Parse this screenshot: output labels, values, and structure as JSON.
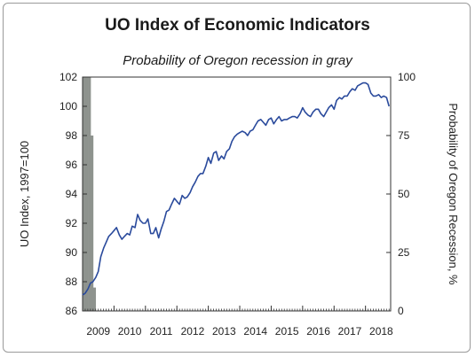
{
  "chart_data": {
    "type": "line",
    "title": "UO Index of Economic Indicators",
    "subtitle": "Probability of Oregon recession in gray",
    "ylabel": "UO Index, 1997=100",
    "y2label": "Probability of Oregon Recession, %",
    "ylim": [
      86,
      102
    ],
    "y2lim": [
      0,
      100
    ],
    "xlim": [
      2009.0,
      2018.8
    ],
    "yticks": [
      "86",
      "88",
      "90",
      "92",
      "94",
      "96",
      "98",
      "100",
      "102"
    ],
    "y2ticks": [
      "0",
      "25",
      "50",
      "75",
      "100"
    ],
    "xticks": [
      "2009",
      "2010",
      "2011",
      "2012",
      "2013",
      "2014",
      "2015",
      "2016",
      "2017",
      "2018"
    ],
    "grid": false,
    "colors": {
      "line": "#2a4a9c",
      "recession": "#8e938e"
    },
    "series": [
      {
        "x": [
          2009.0,
          2009.08,
          2009.17,
          2009.25,
          2009.33,
          2009.42,
          2009.5,
          2009.58,
          2009.67,
          2009.75,
          2009.83,
          2009.92,
          2010.0,
          2010.08,
          2010.17,
          2010.25,
          2010.33,
          2010.42,
          2010.5,
          2010.58,
          2010.67,
          2010.75,
          2010.83,
          2010.92,
          2011.0,
          2011.08,
          2011.17,
          2011.25,
          2011.33,
          2011.42,
          2011.5,
          2011.58,
          2011.67,
          2011.75,
          2011.83,
          2011.92,
          2012.0,
          2012.08,
          2012.17,
          2012.25,
          2012.33,
          2012.42,
          2012.5,
          2012.58,
          2012.67,
          2012.75,
          2012.83,
          2012.92,
          2013.0,
          2013.08,
          2013.17,
          2013.25,
          2013.33,
          2013.42,
          2013.5,
          2013.58,
          2013.67,
          2013.75,
          2013.83,
          2013.92,
          2014.0,
          2014.08,
          2014.17,
          2014.25,
          2014.33,
          2014.42,
          2014.5,
          2014.58,
          2014.67,
          2014.75,
          2014.83,
          2014.92,
          2015.0,
          2015.08,
          2015.17,
          2015.25,
          2015.33,
          2015.42,
          2015.5,
          2015.58,
          2015.67,
          2015.75,
          2015.83,
          2015.92,
          2016.0,
          2016.08,
          2016.17,
          2016.25,
          2016.33,
          2016.42,
          2016.5,
          2016.58,
          2016.67,
          2016.75,
          2016.83,
          2016.92,
          2017.0,
          2017.08,
          2017.17,
          2017.25,
          2017.33,
          2017.42,
          2017.5,
          2017.58,
          2017.67,
          2017.75,
          2017.83,
          2017.92,
          2018.0,
          2018.08,
          2018.17,
          2018.25,
          2018.33,
          2018.42,
          2018.5,
          2018.58,
          2018.67,
          2018.75
        ],
        "y": [
          87.1,
          87.2,
          87.5,
          87.9,
          88.0,
          88.3,
          88.7,
          89.7,
          90.3,
          90.7,
          91.1,
          91.3,
          91.5,
          91.7,
          91.2,
          90.9,
          91.1,
          91.3,
          91.2,
          91.8,
          91.7,
          92.6,
          92.2,
          92.0,
          92.0,
          92.3,
          91.3,
          91.3,
          91.7,
          91.0,
          91.6,
          92.1,
          92.8,
          92.9,
          93.3,
          93.7,
          93.5,
          93.3,
          93.9,
          93.7,
          93.8,
          94.1,
          94.5,
          94.8,
          95.2,
          95.4,
          95.4,
          95.9,
          96.5,
          96.1,
          96.8,
          96.9,
          96.3,
          96.6,
          96.4,
          96.9,
          97.1,
          97.6,
          97.9,
          98.1,
          98.2,
          98.3,
          98.2,
          98.0,
          98.3,
          98.4,
          98.7,
          99.0,
          99.1,
          98.9,
          98.7,
          99.1,
          99.2,
          98.8,
          99.1,
          99.3,
          99.0,
          99.1,
          99.1,
          99.2,
          99.3,
          99.3,
          99.2,
          99.5,
          99.9,
          99.6,
          99.4,
          99.3,
          99.6,
          99.8,
          99.8,
          99.5,
          99.3,
          99.6,
          99.9,
          100.1,
          99.8,
          100.4,
          100.6,
          100.5,
          100.7,
          100.7,
          101.0,
          101.2,
          101.1,
          101.4,
          101.5,
          101.6,
          101.6,
          101.5,
          100.9,
          100.7,
          100.7,
          100.8,
          100.6,
          100.7,
          100.6,
          100.0
        ]
      }
    ],
    "recession_bars": [
      {
        "x": 2009.0,
        "prob": 100
      },
      {
        "x": 2009.08,
        "prob": 100
      },
      {
        "x": 2009.17,
        "prob": 100
      },
      {
        "x": 2009.25,
        "prob": 75
      },
      {
        "x": 2009.33,
        "prob": 10
      }
    ]
  }
}
